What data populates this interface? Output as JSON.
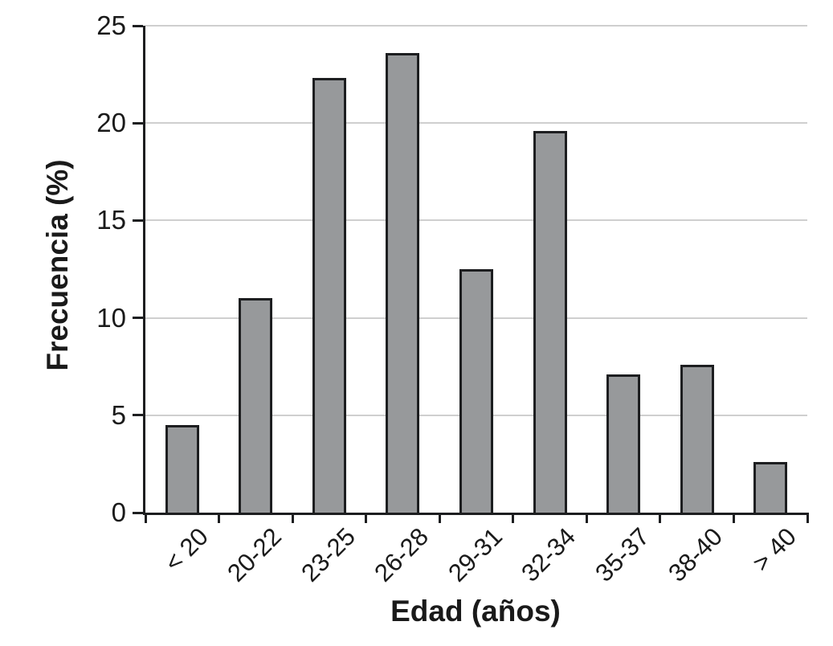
{
  "chart_data": {
    "type": "bar",
    "title": "",
    "xlabel": "Edad (años)",
    "ylabel": "Frecuencia (%)",
    "categories": [
      "< 20",
      "20-22",
      "23-25",
      "26-28",
      "29-31",
      "32-34",
      "35-37",
      "38-40",
      "> 40"
    ],
    "values": [
      4.5,
      11.0,
      22.3,
      23.6,
      12.5,
      19.6,
      7.1,
      7.6,
      2.6
    ],
    "ylim": [
      0,
      25
    ],
    "yticks": [
      0,
      5,
      10,
      15,
      20,
      25
    ],
    "grid": true,
    "legend_position": "none",
    "colors": {
      "bar_fill": "#97999b",
      "bar_border": "#1d1e20",
      "gridline": "#cfcfcf",
      "axis": "#1d1e20",
      "text": "#1a1a1a",
      "background": "#ffffff"
    }
  }
}
